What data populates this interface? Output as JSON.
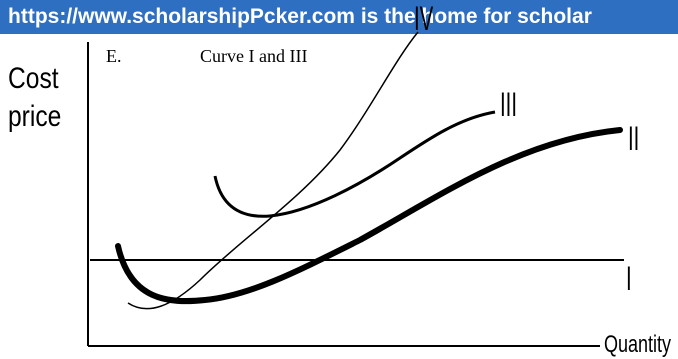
{
  "banner": {
    "text": "https://www.scholarshipPcker.com is the home for scholar"
  },
  "diagram": {
    "y_axis_label_line1": "Cost",
    "y_axis_label_line2": "price",
    "x_axis_label": "Quantity",
    "curves": {
      "i": "I",
      "ii": "II",
      "iii": "III",
      "iv": "IV"
    }
  },
  "option": {
    "letter": "E.",
    "text": "Curve I and III"
  },
  "colors": {
    "banner_bg": "#2f6fc2",
    "banner_text": "#ffffff",
    "ink": "#000000"
  }
}
